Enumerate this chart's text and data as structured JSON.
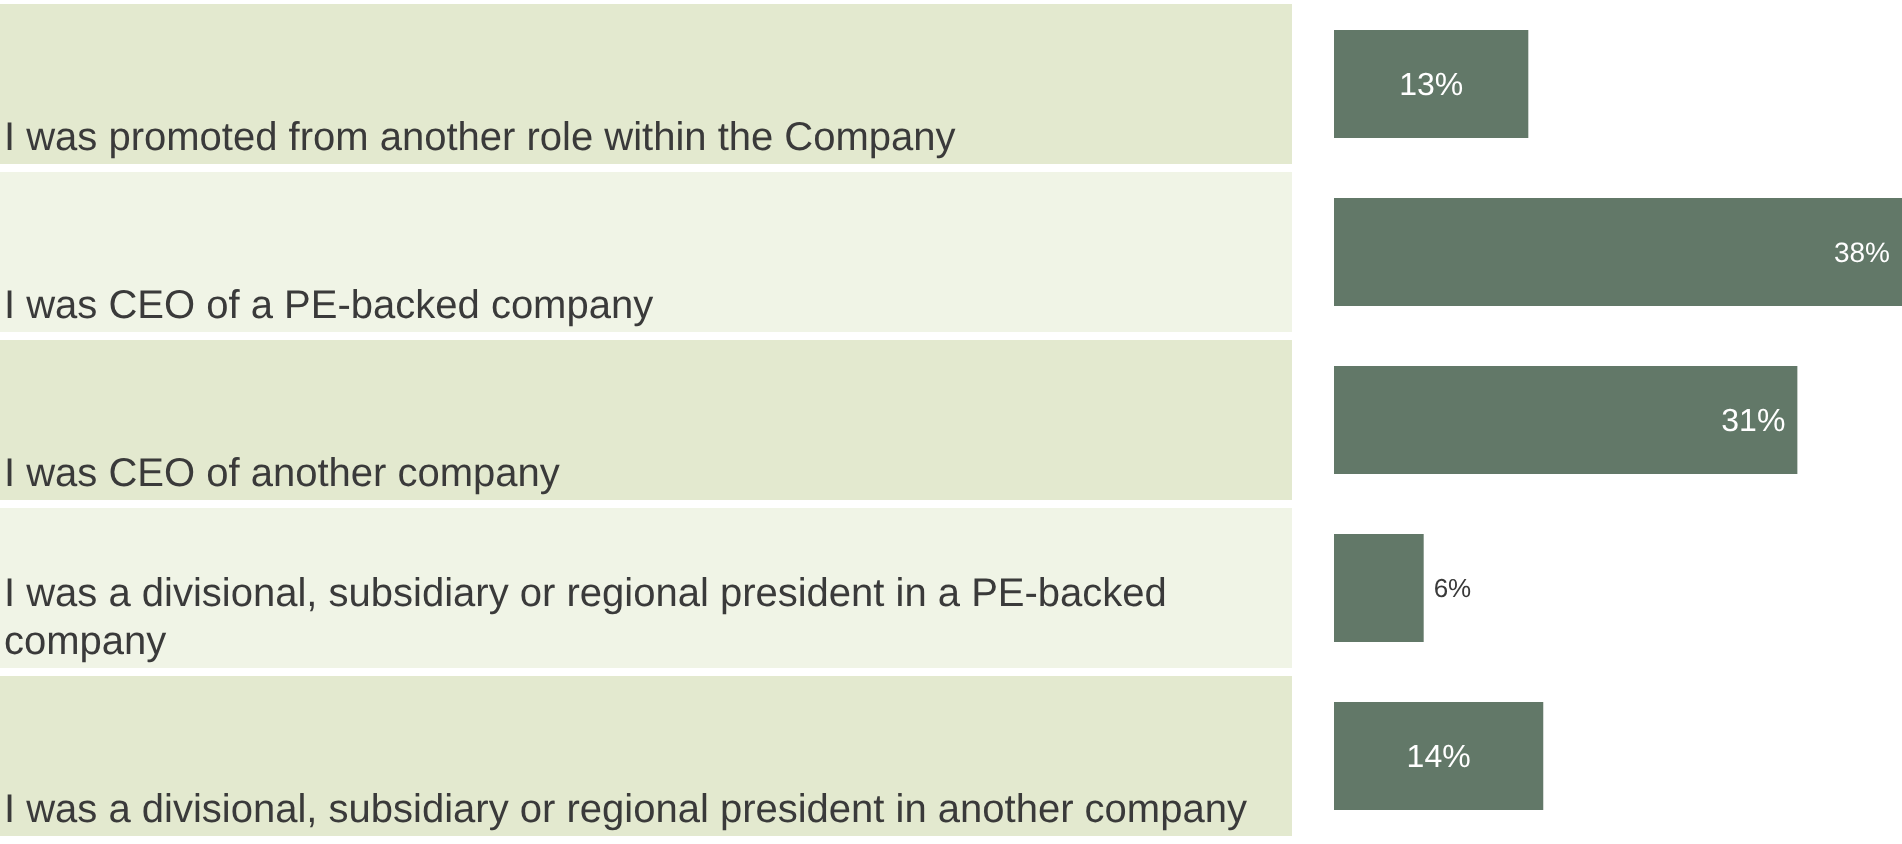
{
  "chart_data": {
    "type": "bar",
    "orientation": "horizontal",
    "categories": [
      "I was promoted from another role within the Company",
      "I was CEO of a PE-backed company",
      "I was CEO of another company",
      "I was a divisional, subsidiary or regional president in a PE-backed company",
      "I was a divisional, subsidiary or regional president in another company"
    ],
    "values": [
      13,
      38,
      31,
      6,
      14
    ],
    "value_labels": [
      "13%",
      "38%",
      "31%",
      "6%",
      "14%"
    ],
    "color": "#627868",
    "xlim": [
      0,
      38
    ],
    "tick_labels": false
  }
}
